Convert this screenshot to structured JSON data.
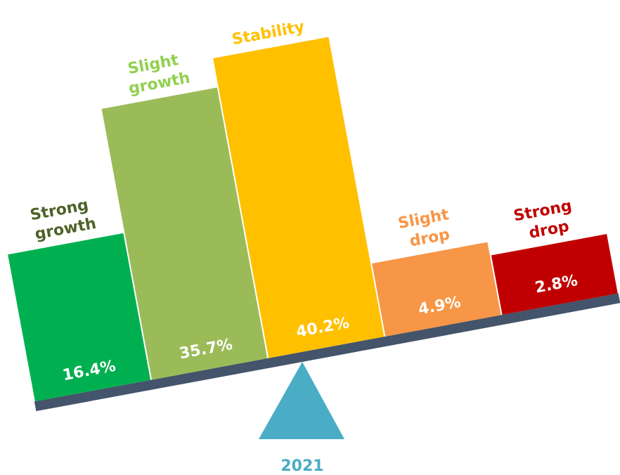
{
  "chart_data": {
    "type": "bar",
    "categories": [
      "Strong growth",
      "Slight growth",
      "Stability",
      "Slight drop",
      "Strong drop"
    ],
    "values": [
      16.4,
      35.7,
      40.2,
      4.9,
      2.8
    ],
    "value_labels": [
      "16.4%",
      "35.7%",
      "40.2%",
      "4.9%",
      "2.8%"
    ],
    "colors": [
      "#00b050",
      "#9bbb59",
      "#ffc000",
      "#f79646",
      "#c00000"
    ],
    "label_colors": [
      "#4f6228",
      "#92d050",
      "#ffc000",
      "#f79646",
      "#c00000"
    ],
    "label": "2021"
  }
}
